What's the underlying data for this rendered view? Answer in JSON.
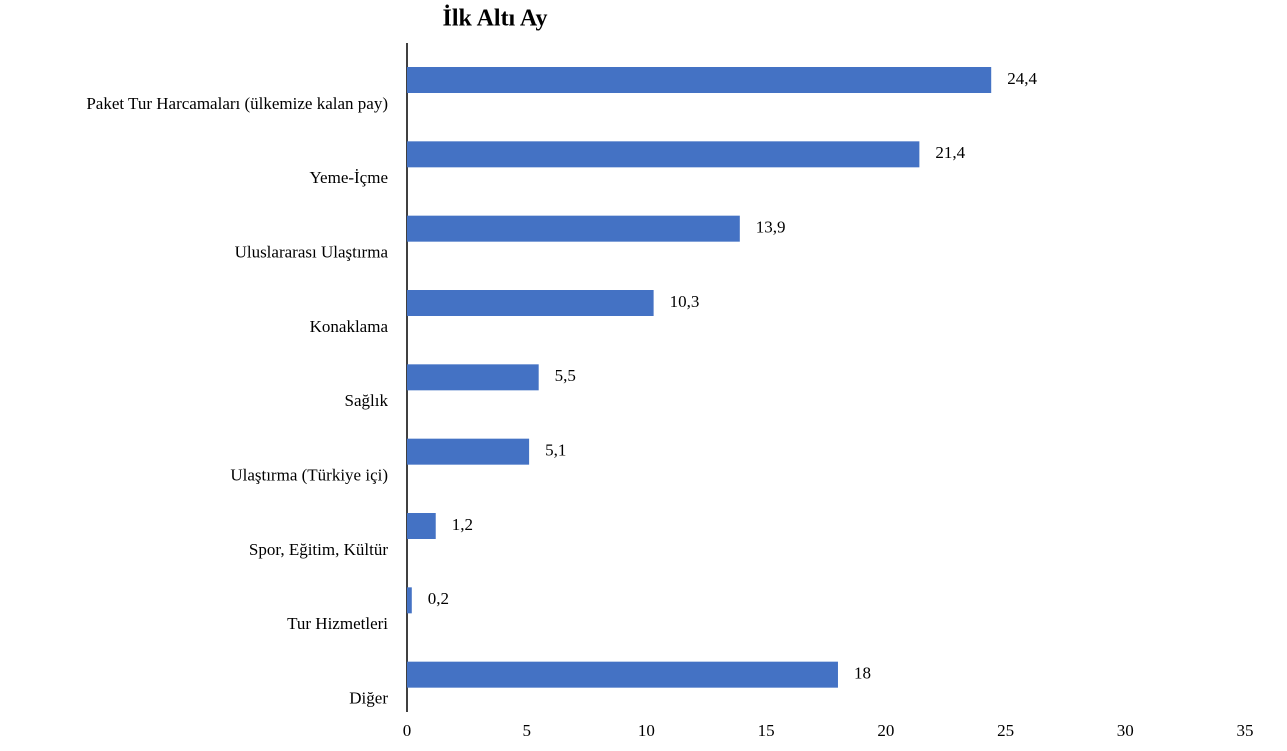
{
  "chart_data": {
    "type": "hbar",
    "title": "İlk Altı Ay",
    "categories": [
      "Paket Tur Harcamaları (ülkemize kalan pay)",
      "Yeme-İçme",
      "Uluslararası Ulaştırma",
      "Konaklama",
      "Sağlık",
      "Ulaştırma (Türkiye içi)",
      "Spor, Eğitim, Kültür",
      "Tur Hizmetleri",
      "Diğer"
    ],
    "values": [
      24.4,
      21.4,
      13.9,
      10.3,
      5.5,
      5.1,
      1.2,
      0.2,
      18
    ],
    "value_labels": [
      "24,4",
      "21,4",
      "13,9",
      "10,3",
      "5,5",
      "5,1",
      "1,2",
      "0,2",
      "18"
    ],
    "color": "#4472c4",
    "xlim": [
      0,
      35
    ],
    "xticks": [
      0,
      5,
      10,
      15,
      20,
      25,
      30,
      35
    ],
    "grid": false
  }
}
